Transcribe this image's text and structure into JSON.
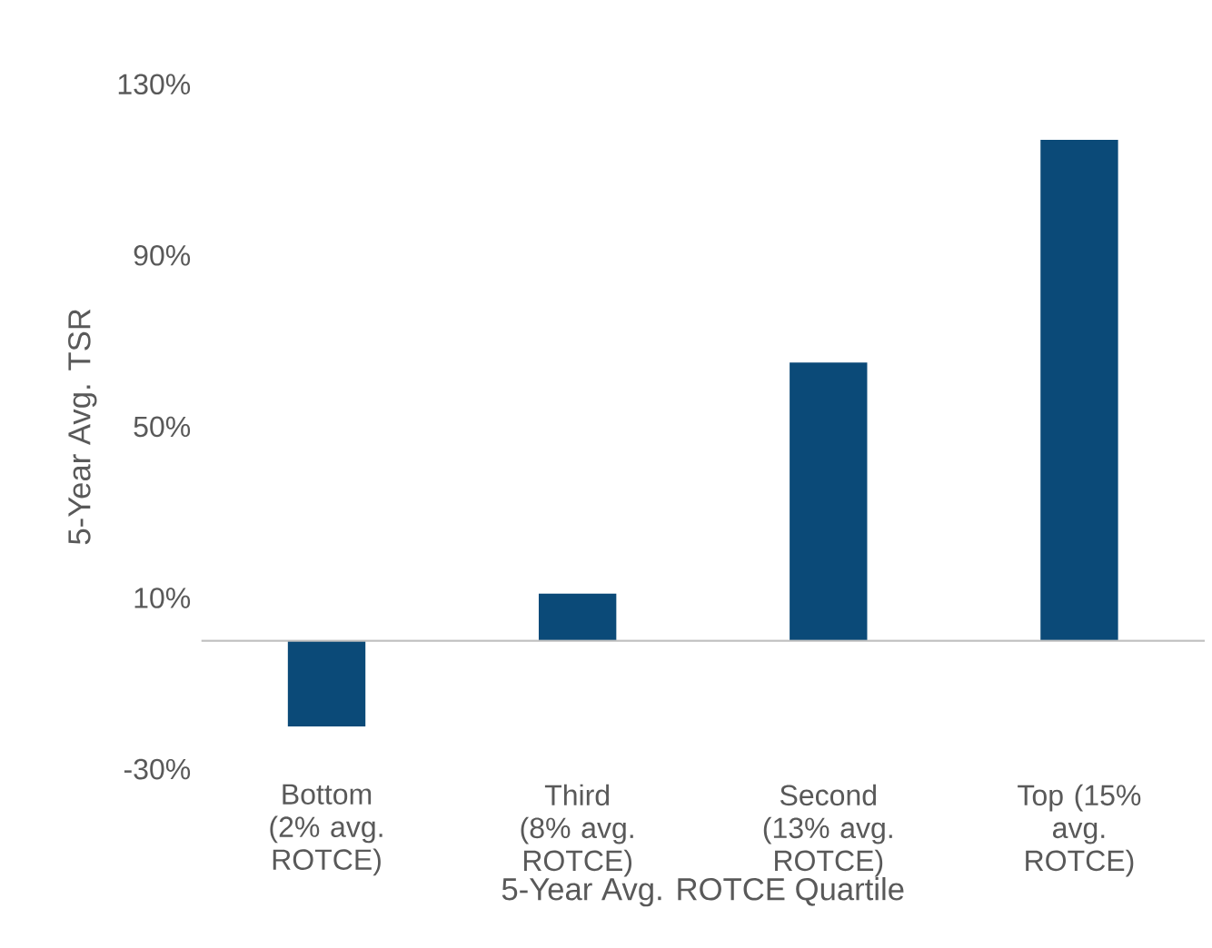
{
  "chart_data": {
    "type": "bar",
    "categories": [
      "Bottom (2% avg. ROTCE)",
      "Third (8% avg. ROTCE)",
      "Second (13% avg. ROTCE)",
      "Top (15% avg. ROTCE)"
    ],
    "values": [
      -20,
      11,
      65,
      117
    ],
    "color": "#0b4a78",
    "xlabel": "5-Year Avg. ROTCE Quartile",
    "ylabel": "5-Year Avg. TSR",
    "ylim": [
      -30,
      130
    ],
    "yticks": [
      {
        "value": -30,
        "label": "-30%"
      },
      {
        "value": 10,
        "label": "10%"
      },
      {
        "value": 50,
        "label": "50%"
      },
      {
        "value": 90,
        "label": "90%"
      },
      {
        "value": 130,
        "label": "130%"
      }
    ],
    "grid": false
  }
}
